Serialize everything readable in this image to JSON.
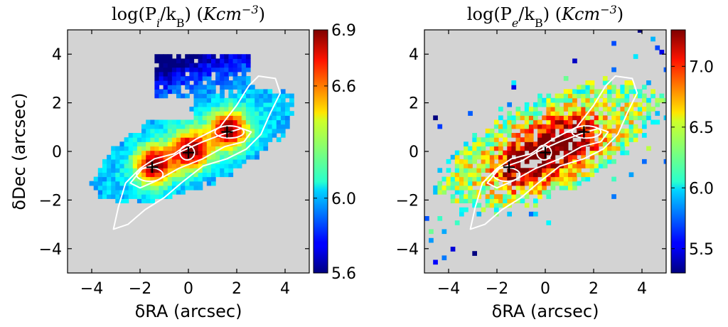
{
  "chart_data": [
    {
      "type": "heatmap",
      "title": "log(P_i/k_B) (Kcm^-3)",
      "title_parts": [
        "log(P",
        "i",
        "/k",
        "B",
        ") (",
        "Kcm",
        "−3",
        ")"
      ],
      "xlabel": "δRA (arcsec)",
      "ylabel": "δDec (arcsec)",
      "xlim": [
        -5,
        5
      ],
      "ylim": [
        -5,
        5
      ],
      "xticks": [
        -4,
        -2,
        0,
        2,
        4
      ],
      "xtick_labels": [
        "−4",
        "−2",
        "0",
        "2",
        "4"
      ],
      "yticks": [
        -4,
        -2,
        0,
        2,
        4
      ],
      "ytick_labels": [
        "−4",
        "−2",
        "0",
        "2",
        "4"
      ],
      "background_color": "#d3d3d3",
      "colormap": "jet",
      "colorbar": {
        "range": [
          5.6,
          6.9
        ],
        "ticks": [
          5.6,
          6.0,
          6.6,
          6.9
        ],
        "tick_labels": [
          "5.6",
          "6.0",
          "6.6",
          "6.9"
        ]
      },
      "markers": [
        {
          "symbol": "+",
          "x": -1.5,
          "y": -0.65
        },
        {
          "symbol": "+",
          "x": 0.0,
          "y": -0.05
        },
        {
          "symbol": "+",
          "x": 1.6,
          "y": 0.8
        }
      ],
      "contour_color": "#ffffff"
    },
    {
      "type": "heatmap",
      "title": "log(P_e/k_B) (Kcm^-3)",
      "title_parts": [
        "log(P",
        "e",
        "/k",
        "B",
        ") (",
        "Kcm",
        "−3",
        ")"
      ],
      "xlabel": "δRA (arcsec)",
      "ylabel": "",
      "xlim": [
        -5,
        5
      ],
      "ylim": [
        -5,
        5
      ],
      "xticks": [
        -4,
        -2,
        0,
        2,
        4
      ],
      "xtick_labels": [
        "−4",
        "−2",
        "0",
        "2",
        "4"
      ],
      "yticks": [
        -4,
        -2,
        0,
        2,
        4
      ],
      "ytick_labels": [
        "−4",
        "−2",
        "0",
        "2",
        "4"
      ],
      "background_color": "#d3d3d3",
      "colormap": "jet",
      "colorbar": {
        "range": [
          5.3,
          7.3
        ],
        "ticks": [
          5.5,
          6.0,
          6.5,
          7.0
        ],
        "tick_labels": [
          "5.5",
          "6.0",
          "6.5",
          "7.0"
        ]
      },
      "markers": [
        {
          "symbol": "+",
          "x": -1.5,
          "y": -0.65
        },
        {
          "symbol": "+",
          "x": 0.0,
          "y": -0.05
        },
        {
          "symbol": "+",
          "x": 1.6,
          "y": 0.8
        }
      ],
      "contour_color": "#ffffff"
    }
  ]
}
